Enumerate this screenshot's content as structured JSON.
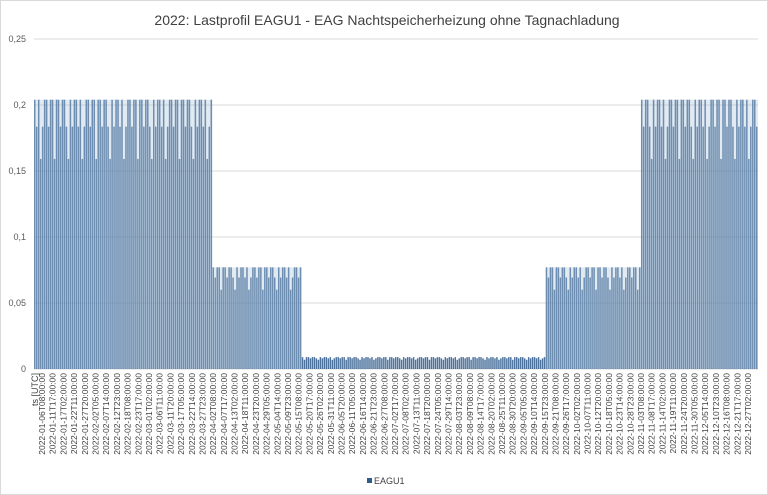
{
  "chart_data": {
    "type": "bar",
    "title": "2022: Lastprofil EAGU1 - EAG Nachtspeicherheizung ohne Tagnachladung",
    "xlabel": "ts [UTC]",
    "ylabel": "",
    "ylim": [
      0,
      0.25
    ],
    "yticks": [
      "0",
      "0,05",
      "0,1",
      "0,15",
      "0,2",
      "0,25"
    ],
    "grid": true,
    "legend_position": "bottom",
    "series": [
      {
        "name": "EAGU1",
        "color": "#2e5a8c",
        "segments": [
          {
            "from": "2022-01-01",
            "to": "2022-03-31",
            "max": 0.204
          },
          {
            "from": "2022-04-01",
            "to": "2022-05-15",
            "max": 0.077
          },
          {
            "from": "2022-05-16",
            "to": "2022-09-15",
            "max": 0.009
          },
          {
            "from": "2022-09-16",
            "to": "2022-11-02",
            "max": 0.077
          },
          {
            "from": "2022-11-03",
            "to": "2022-12-31",
            "max": 0.204
          }
        ]
      }
    ],
    "xtick_labels": [
      "2022-01-06T08:00:00",
      "2022-01-11T17:00:00",
      "2022-01-17T02:00:00",
      "2022-01-22T11:00:00",
      "2022-01-27T20:00:00",
      "2022-02-02T05:00:00",
      "2022-02-07T14:00:00",
      "2022-02-12T23:00:00",
      "2022-02-18T08:00:00",
      "2022-02-23T17:00:00",
      "2022-03-01T02:00:00",
      "2022-03-06T11:00:00",
      "2022-03-11T20:00:00",
      "2022-03-17T05:00:00",
      "2022-03-22T14:00:00",
      "2022-03-27T23:00:00",
      "2022-04-02T08:00:00",
      "2022-04-07T17:00:00",
      "2022-04-13T02:00:00",
      "2022-04-18T11:00:00",
      "2022-04-23T20:00:00",
      "2022-04-29T05:00:00",
      "2022-05-04T14:00:00",
      "2022-05-09T23:00:00",
      "2022-05-15T08:00:00",
      "2022-05-20T17:00:00",
      "2022-05-26T02:00:00",
      "2022-05-31T11:00:00",
      "2022-06-05T20:00:00",
      "2022-06-11T05:00:00",
      "2022-06-16T14:00:00",
      "2022-06-21T23:00:00",
      "2022-06-27T08:00:00",
      "2022-07-02T17:00:00",
      "2022-07-08T02:00:00",
      "2022-07-13T11:00:00",
      "2022-07-18T20:00:00",
      "2022-07-24T05:00:00",
      "2022-07-29T14:00:00",
      "2022-08-03T23:00:00",
      "2022-08-09T08:00:00",
      "2022-08-14T17:00:00",
      "2022-08-20T02:00:00",
      "2022-08-25T11:00:00",
      "2022-08-30T20:00:00",
      "2022-09-05T05:00:00",
      "2022-09-10T14:00:00",
      "2022-09-15T23:00:00",
      "2022-09-21T08:00:00",
      "2022-09-26T17:00:00",
      "2022-10-02T02:00:00",
      "2022-10-07T11:00:00",
      "2022-10-12T20:00:00",
      "2022-10-18T05:00:00",
      "2022-10-23T14:00:00",
      "2022-10-28T23:00:00",
      "2022-11-03T08:00:00",
      "2022-11-08T17:00:00",
      "2022-11-14T02:00:00",
      "2022-11-19T11:00:00",
      "2022-11-24T20:00:00",
      "2022-11-30T05:00:00",
      "2022-12-05T14:00:00",
      "2022-12-10T23:00:00",
      "2022-12-16T08:00:00",
      "2022-12-21T17:00:00",
      "2022-12-27T02:00:00"
    ]
  }
}
